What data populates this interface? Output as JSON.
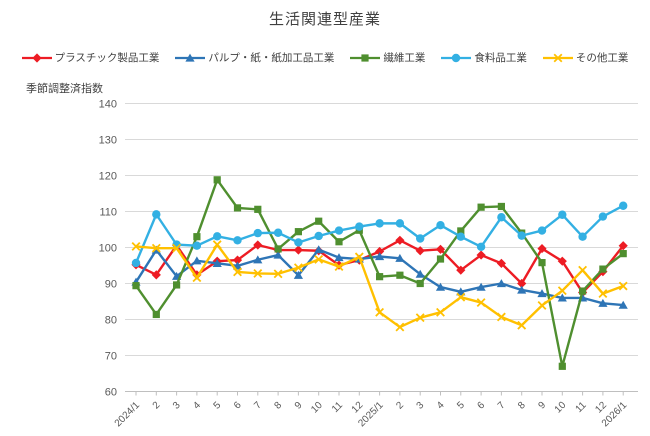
{
  "chart_data": {
    "type": "line",
    "title": "生活関連型産業",
    "y_axis_title": "季節調整済指数",
    "xlabel": "",
    "ylabel": "季節調整済指数",
    "ylim": [
      60,
      140
    ],
    "yticks": [
      60,
      70,
      80,
      90,
      100,
      110,
      120,
      130,
      140
    ],
    "grid": "horizontal",
    "legend_position": "top",
    "categories": [
      "2024/1",
      "2",
      "3",
      "4",
      "5",
      "6",
      "7",
      "8",
      "9",
      "10",
      "11",
      "12",
      "2025/1",
      "2",
      "3",
      "4",
      "5",
      "6",
      "7",
      "8",
      "9",
      "10",
      "11",
      "12",
      "2026/1"
    ],
    "series": [
      {
        "name": "プラスチック製品工業",
        "color": "#ed1c24",
        "marker": "diamond",
        "values": [
          95.2,
          92.4,
          100.6,
          92.4,
          96.2,
          96.5,
          100.7,
          99.3,
          99.3,
          99.1,
          95.1,
          96.5,
          98.9,
          102.0,
          99.1,
          99.5,
          93.7,
          97.9,
          95.6,
          90.0,
          99.7,
          96.2,
          87.5,
          93.3,
          100.5
        ]
      },
      {
        "name": "パルプ・紙・紙加工品工業",
        "color": "#2e75b6",
        "marker": "triangle",
        "values": [
          90.4,
          99.3,
          92.0,
          96.3,
          95.6,
          94.9,
          96.6,
          97.9,
          92.3,
          99.4,
          97.2,
          96.8,
          97.5,
          97.0,
          92.6,
          89.0,
          87.7,
          89.0,
          90.0,
          88.2,
          87.2,
          86.0,
          86.0,
          84.5,
          84.0
        ]
      },
      {
        "name": "繊維工業",
        "color": "#4f8f2f",
        "marker": "square",
        "values": [
          89.4,
          81.4,
          89.6,
          103.0,
          118.8,
          111.0,
          110.6,
          99.6,
          104.4,
          107.3,
          101.6,
          104.8,
          91.9,
          92.3,
          90.0,
          96.8,
          104.6,
          111.2,
          111.4,
          104.0,
          95.8,
          67.0,
          87.9,
          94.0,
          98.3
        ]
      },
      {
        "name": "食料品工業",
        "color": "#33b0e3",
        "marker": "circle",
        "values": [
          95.7,
          109.2,
          100.8,
          100.5,
          103.1,
          102.0,
          104.0,
          104.1,
          101.4,
          103.2,
          104.7,
          105.8,
          106.7,
          106.7,
          102.5,
          106.2,
          103.0,
          100.2,
          108.4,
          103.3,
          104.7,
          109.1,
          103.0,
          108.6,
          111.6
        ]
      },
      {
        "name": "その他工業",
        "color": "#ffc000",
        "marker": "x",
        "values": [
          100.3,
          99.8,
          99.8,
          91.6,
          100.8,
          93.2,
          92.8,
          92.7,
          94.4,
          96.7,
          94.7,
          97.4,
          82.0,
          77.9,
          80.5,
          82.0,
          86.2,
          84.7,
          80.7,
          78.4,
          83.9,
          88.0,
          93.7,
          87.2,
          89.3
        ]
      }
    ],
    "style": {
      "gridline_color": "#d9d9d9",
      "axis_color": "#bfbfbf",
      "tick_label_color": "#595959",
      "title_color": "#404040"
    }
  }
}
